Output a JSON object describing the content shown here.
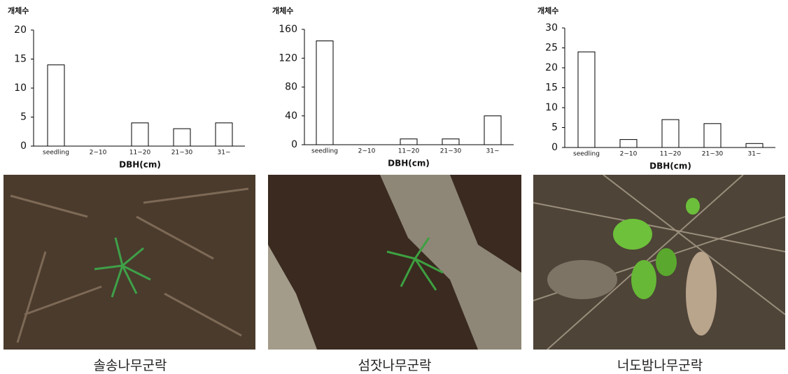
{
  "chart_data": [
    {
      "type": "bar",
      "y_label": "개체수",
      "x_label": "DBH(cm)",
      "caption": "솔송나무군락",
      "categories": [
        "seedling",
        "2~10",
        "11~20",
        "21~30",
        "31~"
      ],
      "values": [
        14,
        0,
        4,
        3,
        4
      ],
      "color": "#ffffff",
      "ylim": [
        0,
        20
      ],
      "yticks": [
        0,
        5,
        10,
        15,
        20
      ]
    },
    {
      "type": "bar",
      "y_label": "개체수",
      "x_label": "DBH(cm)",
      "caption": "섬잣나무군락",
      "categories": [
        "seedling",
        "2~10",
        "11~20",
        "21~30",
        "31~"
      ],
      "values": [
        144,
        0,
        8,
        8,
        40
      ],
      "color": "#ffffff",
      "ylim": [
        0,
        160
      ],
      "yticks": [
        0,
        40,
        80,
        120,
        160
      ]
    },
    {
      "type": "bar",
      "y_label": "개체수",
      "x_label": "DBH(cm)",
      "caption": "너도밤나무군락",
      "categories": [
        "seedling",
        "2~10",
        "11~20",
        "21~30",
        "31~"
      ],
      "values": [
        24,
        2,
        7,
        6,
        1
      ],
      "color": "#ffffff",
      "ylim": [
        0,
        30
      ],
      "yticks": [
        0,
        5,
        10,
        15,
        20,
        25,
        30
      ]
    }
  ]
}
